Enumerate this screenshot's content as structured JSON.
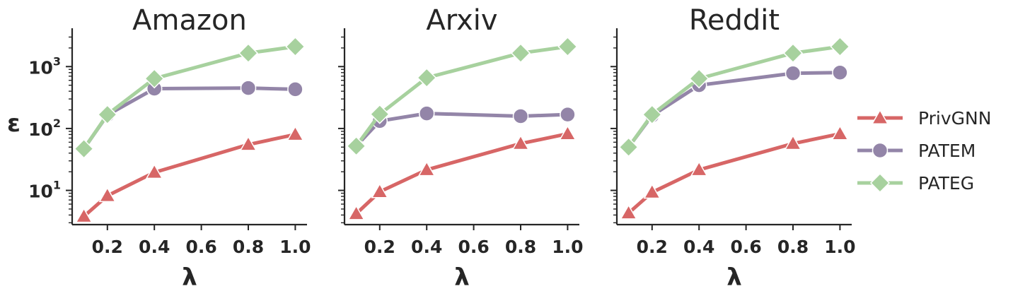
{
  "chart_data": [
    {
      "type": "line",
      "title": "Amazon",
      "xlabel": "λ",
      "ylabel": "ε",
      "yscale": "log",
      "xlim": [
        0.05,
        1.05
      ],
      "ylim": [
        2.8,
        3200
      ],
      "xticks": [
        "0.2",
        "0.4",
        "0.6",
        "0.8",
        "1.0"
      ],
      "yticks": [
        {
          "base": "10",
          "exp": "1"
        },
        {
          "base": "10",
          "exp": "2"
        },
        {
          "base": "10",
          "exp": "3"
        }
      ],
      "x": [
        0.1,
        0.2,
        0.4,
        0.8,
        1.0
      ],
      "series": [
        {
          "name": "PrivGNN",
          "values": [
            3.8,
            8.2,
            19.5,
            55,
            80
          ]
        },
        {
          "name": "PATEM",
          "values": [
            47,
            165,
            440,
            450,
            430
          ]
        },
        {
          "name": "PATEG",
          "values": [
            47,
            168,
            640,
            1650,
            2100
          ]
        }
      ]
    },
    {
      "type": "line",
      "title": "Arxiv",
      "xlabel": "λ",
      "ylabel": "",
      "yscale": "log",
      "xlim": [
        0.05,
        1.05
      ],
      "ylim": [
        2.8,
        3200
      ],
      "xticks": [
        "0.2",
        "0.4",
        "0.6",
        "0.8",
        "1.0"
      ],
      "yticks": [],
      "x": [
        0.1,
        0.2,
        0.4,
        0.8,
        1.0
      ],
      "series": [
        {
          "name": "PrivGNN",
          "values": [
            4.2,
            9.5,
            21.5,
            57,
            82
          ]
        },
        {
          "name": "PATEM",
          "values": [
            52,
            132,
            175,
            158,
            168
          ]
        },
        {
          "name": "PATEG",
          "values": [
            52,
            170,
            660,
            1650,
            2100
          ]
        }
      ]
    },
    {
      "type": "line",
      "title": "Reddit",
      "xlabel": "λ",
      "ylabel": "",
      "yscale": "log",
      "xlim": [
        0.05,
        1.05
      ],
      "ylim": [
        2.8,
        3200
      ],
      "xticks": [
        "0.2",
        "0.4",
        "0.6",
        "0.8",
        "1.0"
      ],
      "yticks": [],
      "x": [
        0.1,
        0.2,
        0.4,
        0.8,
        1.0
      ],
      "series": [
        {
          "name": "PrivGNN",
          "values": [
            4.3,
            9.3,
            21.5,
            57,
            82
          ]
        },
        {
          "name": "PATEM",
          "values": [
            50,
            162,
            500,
            780,
            800
          ]
        },
        {
          "name": "PATEG",
          "values": [
            50,
            168,
            640,
            1650,
            2100
          ]
        }
      ]
    }
  ],
  "legend": {
    "placement": "right",
    "items": [
      {
        "label": "PrivGNN",
        "color": "#d76666",
        "marker": "triangle"
      },
      {
        "label": "PATEM",
        "color": "#9385a8",
        "marker": "circle"
      },
      {
        "label": "PATEG",
        "color": "#a7d19e",
        "marker": "diamond"
      }
    ]
  },
  "colors": {
    "PrivGNN": "#d76666",
    "PATEM": "#9385a8",
    "PATEG": "#a7d19e",
    "axis": "#262626"
  }
}
